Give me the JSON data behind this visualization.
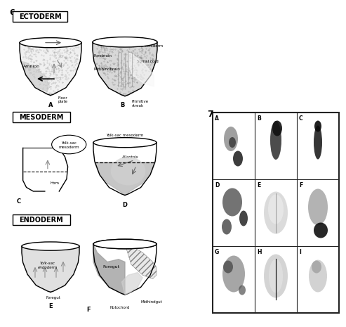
{
  "bg_color": "#ffffff",
  "fig_num_left": "6",
  "fig_num_right": "7",
  "section_labels": [
    "ECTODERM",
    "MESODERM",
    "ENDODERM"
  ],
  "panel_labels_left": [
    "A",
    "B",
    "C",
    "D",
    "E",
    "F"
  ],
  "panel_labels_right": [
    "A",
    "B",
    "C",
    "D",
    "E",
    "F",
    "G",
    "H",
    "I"
  ],
  "label_fontsize": 6,
  "section_fontsize": 7,
  "grid_bg": "#c8c8c8",
  "grid_border": "#000000"
}
